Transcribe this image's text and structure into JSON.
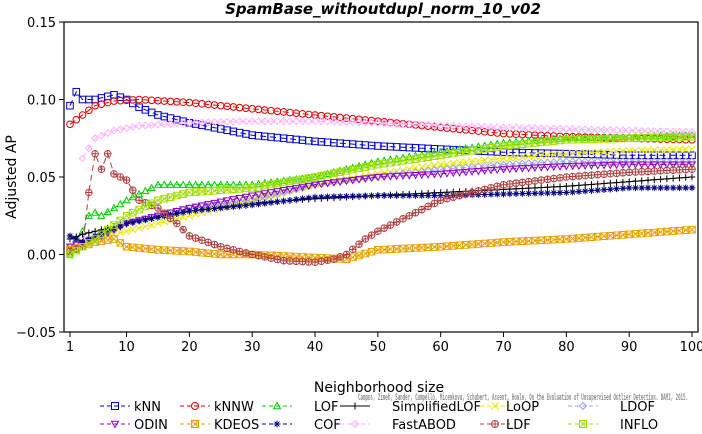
{
  "chart_data": {
    "type": "line",
    "title": "SpamBase_withoutdupl_norm_10_v02",
    "xlabel": "Neighborhood size",
    "ylabel": "Adjusted AP",
    "xlim": [
      1,
      100
    ],
    "ylim": [
      -0.05,
      0.15
    ],
    "xticks": [
      1,
      10,
      20,
      30,
      40,
      50,
      60,
      70,
      80,
      90,
      100
    ],
    "yticks": [
      -0.05,
      0.0,
      0.05,
      0.1,
      0.15
    ],
    "ytick_labels": [
      "−0.05",
      "0.00",
      "0.05",
      "0.10",
      "0.15"
    ],
    "grid": false,
    "legend_position": "bottom",
    "watermark": "Campos, Zimek, Sander, Campello, Micenkova, Schubert, Assent, Houle. On the Evaluation of Unsupervised Outlier Detection. DAMI, 2015.",
    "series": [
      {
        "name": "kNN",
        "color": "#0000e0",
        "marker": "square",
        "dash": "6,4",
        "anchors": [
          [
            1,
            0.096
          ],
          [
            2,
            0.105
          ],
          [
            3,
            0.1
          ],
          [
            5,
            0.1
          ],
          [
            8,
            0.103
          ],
          [
            10,
            0.1
          ],
          [
            12,
            0.095
          ],
          [
            15,
            0.09
          ],
          [
            20,
            0.085
          ],
          [
            30,
            0.077
          ],
          [
            40,
            0.073
          ],
          [
            50,
            0.07
          ],
          [
            60,
            0.068
          ],
          [
            70,
            0.066
          ],
          [
            80,
            0.065
          ],
          [
            90,
            0.064
          ],
          [
            100,
            0.064
          ]
        ]
      },
      {
        "name": "kNNW",
        "color": "#e00000",
        "marker": "circle",
        "dash": "6,4",
        "anchors": [
          [
            1,
            0.084
          ],
          [
            3,
            0.09
          ],
          [
            5,
            0.096
          ],
          [
            8,
            0.099
          ],
          [
            12,
            0.1
          ],
          [
            20,
            0.098
          ],
          [
            30,
            0.094
          ],
          [
            40,
            0.09
          ],
          [
            50,
            0.086
          ],
          [
            60,
            0.082
          ],
          [
            70,
            0.078
          ],
          [
            80,
            0.076
          ],
          [
            90,
            0.075
          ],
          [
            100,
            0.074
          ]
        ]
      },
      {
        "name": "LOF",
        "color": "#00d000",
        "marker": "triangle-up",
        "dash": "6,4",
        "anchors": [
          [
            1,
            0.0
          ],
          [
            2,
            0.01
          ],
          [
            3,
            0.015
          ],
          [
            4,
            0.025
          ],
          [
            5,
            0.027
          ],
          [
            6,
            0.025
          ],
          [
            8,
            0.03
          ],
          [
            10,
            0.035
          ],
          [
            15,
            0.045
          ],
          [
            20,
            0.045
          ],
          [
            30,
            0.045
          ],
          [
            40,
            0.05
          ],
          [
            50,
            0.06
          ],
          [
            60,
            0.066
          ],
          [
            70,
            0.072
          ],
          [
            80,
            0.075
          ],
          [
            90,
            0.076
          ],
          [
            100,
            0.077
          ]
        ]
      },
      {
        "name": "SimplifiedLOF",
        "color": "#000000",
        "marker": "plus",
        "dash": "",
        "anchors": [
          [
            1,
            0.01
          ],
          [
            3,
            0.013
          ],
          [
            5,
            0.015
          ],
          [
            10,
            0.02
          ],
          [
            20,
            0.028
          ],
          [
            30,
            0.033
          ],
          [
            40,
            0.036
          ],
          [
            50,
            0.038
          ],
          [
            60,
            0.04
          ],
          [
            70,
            0.042
          ],
          [
            80,
            0.044
          ],
          [
            90,
            0.047
          ],
          [
            100,
            0.05
          ]
        ]
      },
      {
        "name": "LoOP",
        "color": "#e8e800",
        "marker": "x",
        "dash": "6,4",
        "anchors": [
          [
            1,
            0.005
          ],
          [
            5,
            0.01
          ],
          [
            10,
            0.015
          ],
          [
            20,
            0.025
          ],
          [
            30,
            0.035
          ],
          [
            40,
            0.045
          ],
          [
            50,
            0.052
          ],
          [
            60,
            0.058
          ],
          [
            70,
            0.062
          ],
          [
            80,
            0.065
          ],
          [
            90,
            0.067
          ],
          [
            100,
            0.068
          ]
        ]
      },
      {
        "name": "LDOF",
        "color": "#a0a0e8",
        "marker": "diamond",
        "dash": "6,4",
        "anchors": [
          [
            1,
            0.005
          ],
          [
            5,
            0.01
          ],
          [
            10,
            0.02
          ],
          [
            20,
            0.03
          ],
          [
            30,
            0.035
          ],
          [
            40,
            0.045
          ],
          [
            50,
            0.05
          ],
          [
            60,
            0.055
          ],
          [
            70,
            0.058
          ],
          [
            80,
            0.06
          ],
          [
            90,
            0.06
          ],
          [
            100,
            0.06
          ]
        ]
      },
      {
        "name": "ODIN",
        "color": "#9000c0",
        "marker": "triangle-down",
        "dash": "6,4",
        "anchors": [
          [
            1,
            0.005
          ],
          [
            5,
            0.01
          ],
          [
            10,
            0.02
          ],
          [
            20,
            0.03
          ],
          [
            30,
            0.038
          ],
          [
            40,
            0.045
          ],
          [
            50,
            0.05
          ],
          [
            60,
            0.052
          ],
          [
            70,
            0.055
          ],
          [
            80,
            0.057
          ],
          [
            90,
            0.058
          ],
          [
            100,
            0.058
          ]
        ]
      },
      {
        "name": "KDEOS",
        "color": "#e8a000",
        "marker": "square-x",
        "dash": "6,4",
        "anchors": [
          [
            1,
            0.003
          ],
          [
            3,
            0.005
          ],
          [
            5,
            0.008
          ],
          [
            8,
            0.01
          ],
          [
            10,
            0.005
          ],
          [
            15,
            0.003
          ],
          [
            20,
            0.002
          ],
          [
            25,
            0.0
          ],
          [
            30,
            0.0
          ],
          [
            40,
            -0.002
          ],
          [
            45,
            -0.003
          ],
          [
            50,
            0.003
          ],
          [
            60,
            0.005
          ],
          [
            70,
            0.008
          ],
          [
            80,
            0.01
          ],
          [
            90,
            0.013
          ],
          [
            100,
            0.016
          ]
        ]
      },
      {
        "name": "COF",
        "color": "#000080",
        "marker": "asterisk",
        "dash": "6,4",
        "anchors": [
          [
            1,
            0.012
          ],
          [
            3,
            0.008
          ],
          [
            5,
            0.012
          ],
          [
            10,
            0.02
          ],
          [
            20,
            0.028
          ],
          [
            30,
            0.032
          ],
          [
            40,
            0.037
          ],
          [
            50,
            0.038
          ],
          [
            60,
            0.038
          ],
          [
            70,
            0.039
          ],
          [
            80,
            0.04
          ],
          [
            90,
            0.043
          ],
          [
            100,
            0.043
          ]
        ]
      },
      {
        "name": "FastABOD",
        "color": "#ffb0ff",
        "marker": "diamond",
        "dash": "6,4",
        "anchors": [
          [
            3,
            0.062
          ],
          [
            5,
            0.075
          ],
          [
            8,
            0.08
          ],
          [
            12,
            0.083
          ],
          [
            20,
            0.085
          ],
          [
            30,
            0.086
          ],
          [
            40,
            0.086
          ],
          [
            50,
            0.085
          ],
          [
            60,
            0.083
          ],
          [
            70,
            0.082
          ],
          [
            80,
            0.081
          ],
          [
            90,
            0.08
          ],
          [
            100,
            0.079
          ]
        ]
      },
      {
        "name": "LDF",
        "color": "#b04040",
        "marker": "circle-plus",
        "dash": "6,4",
        "anchors": [
          [
            1,
            0.002
          ],
          [
            3,
            0.005
          ],
          [
            4,
            0.04
          ],
          [
            5,
            0.065
          ],
          [
            6,
            0.055
          ],
          [
            7,
            0.065
          ],
          [
            8,
            0.052
          ],
          [
            9,
            0.05
          ],
          [
            10,
            0.048
          ],
          [
            12,
            0.035
          ],
          [
            15,
            0.03
          ],
          [
            18,
            0.02
          ],
          [
            20,
            0.012
          ],
          [
            25,
            0.005
          ],
          [
            30,
            0.0
          ],
          [
            35,
            -0.004
          ],
          [
            40,
            -0.005
          ],
          [
            43,
            -0.003
          ],
          [
            45,
            0.0
          ],
          [
            48,
            0.01
          ],
          [
            50,
            0.015
          ],
          [
            55,
            0.025
          ],
          [
            60,
            0.035
          ],
          [
            65,
            0.04
          ],
          [
            70,
            0.045
          ],
          [
            80,
            0.05
          ],
          [
            90,
            0.053
          ],
          [
            100,
            0.055
          ]
        ]
      },
      {
        "name": "INFLO",
        "color": "#a0e000",
        "marker": "square-x",
        "dash": "6,4",
        "anchors": [
          [
            1,
            0.0
          ],
          [
            5,
            0.01
          ],
          [
            10,
            0.025
          ],
          [
            15,
            0.035
          ],
          [
            20,
            0.04
          ],
          [
            30,
            0.043
          ],
          [
            40,
            0.05
          ],
          [
            50,
            0.058
          ],
          [
            60,
            0.064
          ],
          [
            70,
            0.07
          ],
          [
            80,
            0.074
          ],
          [
            90,
            0.075
          ],
          [
            100,
            0.076
          ]
        ]
      }
    ]
  }
}
